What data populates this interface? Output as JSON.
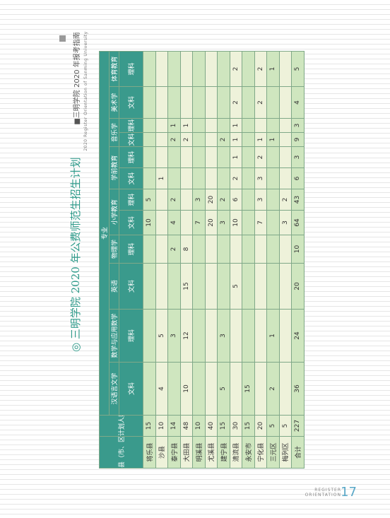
{
  "header": {
    "brand": "■三明学院 2020 年报考指南",
    "brand_en": "2020 Register Orientation of Sanming University"
  },
  "title": "◎ 三明学院 2020 年公费师范生招生计划",
  "table": {
    "county": "县（市、区）",
    "plan": "计划人数",
    "major": "专业",
    "majors": [
      {
        "name": "汉语言文学",
        "span": 1
      },
      {
        "name": "数学与应用数学",
        "span": 1
      },
      {
        "name": "英语",
        "span": 1
      },
      {
        "name": "物理学",
        "span": 1
      },
      {
        "name": "小学教育",
        "span": 2
      },
      {
        "name": "学前教育",
        "span": 2
      },
      {
        "name": "音乐学",
        "span": 2
      },
      {
        "name": "美术学",
        "span": 1
      },
      {
        "name": "体育教育",
        "span": 1
      }
    ],
    "subs": [
      "文科",
      "理科",
      "文科",
      "理科",
      "文科",
      "理科",
      "文科",
      "理科",
      "文科",
      "理科",
      "文科",
      "理科"
    ],
    "rows": [
      [
        "将乐县",
        15,
        null,
        null,
        null,
        null,
        10,
        5,
        null,
        null,
        null,
        null,
        null,
        null
      ],
      [
        "沙县",
        10,
        4,
        5,
        null,
        null,
        null,
        null,
        1,
        null,
        null,
        null,
        null,
        null
      ],
      [
        "泰宁县",
        14,
        null,
        3,
        null,
        2,
        4,
        2,
        null,
        null,
        2,
        1,
        null,
        null
      ],
      [
        "大田县",
        48,
        10,
        12,
        15,
        8,
        null,
        null,
        null,
        null,
        2,
        1,
        null,
        null
      ],
      [
        "明溪县",
        10,
        null,
        null,
        null,
        null,
        7,
        3,
        null,
        null,
        null,
        null,
        null,
        null
      ],
      [
        "尤溪县",
        40,
        null,
        null,
        null,
        null,
        20,
        20,
        null,
        null,
        null,
        null,
        null,
        null
      ],
      [
        "建宁县",
        15,
        5,
        3,
        null,
        null,
        3,
        2,
        null,
        null,
        2,
        null,
        null,
        null
      ],
      [
        "清流县",
        30,
        null,
        null,
        5,
        null,
        10,
        6,
        2,
        1,
        1,
        1,
        2,
        2
      ],
      [
        "永安市",
        15,
        15,
        null,
        null,
        null,
        null,
        null,
        null,
        null,
        null,
        null,
        null,
        null
      ],
      [
        "宁化县",
        20,
        null,
        null,
        null,
        null,
        7,
        3,
        3,
        2,
        1,
        null,
        2,
        2
      ],
      [
        "三元区",
        5,
        2,
        1,
        null,
        null,
        null,
        null,
        null,
        null,
        1,
        null,
        null,
        1
      ],
      [
        "梅列区",
        5,
        null,
        null,
        null,
        null,
        3,
        2,
        null,
        null,
        null,
        null,
        null,
        null
      ],
      [
        "合计",
        227,
        36,
        24,
        20,
        10,
        64,
        43,
        6,
        3,
        9,
        3,
        4,
        5
      ]
    ]
  },
  "footer": {
    "text": "REGISTER ORIENTATION",
    "page": "17"
  }
}
